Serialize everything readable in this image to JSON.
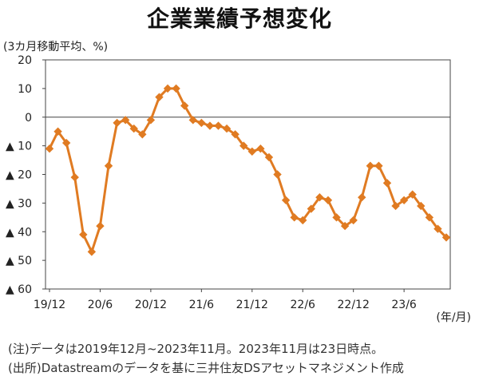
{
  "chart_data": {
    "type": "line",
    "title": "企業業績予想変化",
    "ylabel": "(3カ月移動平均、%)",
    "xlabel": "(年/月)",
    "ylim": [
      -60,
      20
    ],
    "yticks": [
      {
        "value": 20,
        "label": "20"
      },
      {
        "value": 10,
        "label": "10"
      },
      {
        "value": 0,
        "label": "0"
      },
      {
        "value": -10,
        "label": "▲ 10"
      },
      {
        "value": -20,
        "label": "▲ 20"
      },
      {
        "value": -30,
        "label": "▲ 30"
      },
      {
        "value": -40,
        "label": "▲ 40"
      },
      {
        "value": -50,
        "label": "▲ 50"
      },
      {
        "value": -60,
        "label": "▲ 60"
      }
    ],
    "xticks": [
      {
        "index": 0,
        "label": "19/12"
      },
      {
        "index": 6,
        "label": "20/6"
      },
      {
        "index": 12,
        "label": "20/12"
      },
      {
        "index": 18,
        "label": "21/6"
      },
      {
        "index": 24,
        "label": "21/12"
      },
      {
        "index": 30,
        "label": "22/6"
      },
      {
        "index": 36,
        "label": "22/12"
      },
      {
        "index": 42,
        "label": "23/6"
      }
    ],
    "color": "#e07b22",
    "series": [
      {
        "values": [
          -11,
          -5,
          -9,
          -21,
          -41,
          -47,
          -38,
          -17,
          -2,
          -1,
          -4,
          -6,
          -1,
          7,
          10,
          10,
          4,
          -1,
          -2,
          -3,
          -3,
          -4,
          -6,
          -10,
          -12,
          -11,
          -14,
          -20,
          -29,
          -35,
          -36,
          -32,
          -28,
          -29,
          -35,
          -38,
          -36,
          -28,
          -17,
          -17,
          -23,
          -31,
          -29,
          -27,
          -31,
          -35,
          -39,
          -42
        ]
      }
    ]
  },
  "notes": {
    "line1": "(注)データは2019年12月~2023年11月。2023年11月は23日時点。",
    "line2": "(出所)Datastreamのデータを基に三井住友DSアセットマネジメント作成"
  }
}
